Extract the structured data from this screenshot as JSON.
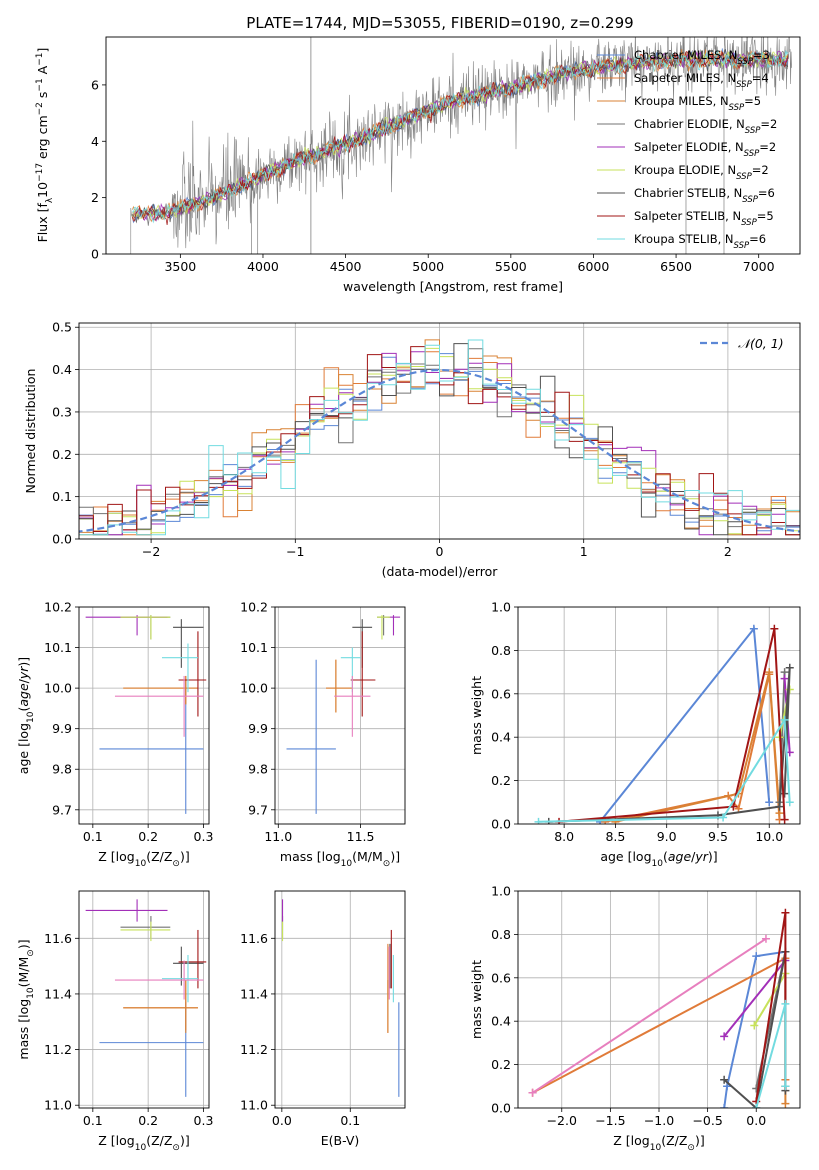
{
  "figure_title": "PLATE=1744, MJD=53055, FIBERID=0190, z=0.299",
  "colors": {
    "Chabrier MILES": "#5b87d6",
    "Salpeter MILES": "#e07b39",
    "Kroupa MILES": "#d98234",
    "Chabrier ELODIE": "#737373",
    "Salpeter ELODIE": "#a22fb8",
    "Kroupa ELODIE": "#c7e25b",
    "Chabrier STELIB": "#505050",
    "Salpeter STELIB": "#a11515",
    "Kroupa STELIB": "#72dbe0",
    "pink": "#e77fbe",
    "grey_spectrum": "#808080"
  },
  "chart_data": [
    {
      "id": "spectrum",
      "type": "line",
      "title": "PLATE=1744, MJD=53055, FIBERID=0190, z=0.299",
      "xlabel": "wavelength [Angstrom, rest frame]",
      "ylabel_parts": [
        "Flux [f",
        "λ",
        "10",
        "−17",
        " erg cm",
        "−2",
        " s",
        "−1",
        " A",
        "−1",
        "]"
      ],
      "xlim": [
        3050,
        7250
      ],
      "ylim": [
        0,
        7.7
      ],
      "xticks": [
        3500,
        4000,
        4500,
        5000,
        5500,
        6000,
        6500,
        7000
      ],
      "yticks": [
        0,
        2,
        4,
        6
      ],
      "legend_position": "upper-right",
      "legend": [
        {
          "label_pre": "Chabrier MILES, N",
          "label_sub": "SSP",
          "label_post": "=3"
        },
        {
          "label_pre": "Salpeter MILES, N",
          "label_sub": "SSP",
          "label_post": "=4"
        },
        {
          "label_pre": "Kroupa MILES, N",
          "label_sub": "SSP",
          "label_post": "=5"
        },
        {
          "label_pre": "Chabrier ELODIE, N",
          "label_sub": "SSP",
          "label_post": "=2"
        },
        {
          "label_pre": "Salpeter ELODIE, N",
          "label_sub": "SSP",
          "label_post": "=2"
        },
        {
          "label_pre": "Kroupa ELODIE, N",
          "label_sub": "SSP",
          "label_post": "=2"
        },
        {
          "label_pre": "Chabrier STELIB, N",
          "label_sub": "SSP",
          "label_post": "=6"
        },
        {
          "label_pre": "Salpeter STELIB, N",
          "label_sub": "SSP",
          "label_post": "=5"
        },
        {
          "label_pre": "Kroupa STELIB, N",
          "label_sub": "SSP",
          "label_post": "=6"
        }
      ],
      "continuum": {
        "x": [
          3200,
          3400,
          3500,
          3700,
          3900,
          4000,
          4200,
          4500,
          4800,
          5000,
          5200,
          5500,
          5800,
          6000,
          6300,
          6600,
          7000,
          7200
        ],
        "y": [
          1.4,
          1.45,
          1.6,
          2.0,
          2.5,
          2.8,
          3.3,
          3.9,
          4.6,
          5.1,
          5.5,
          5.9,
          6.4,
          6.6,
          6.8,
          6.9,
          6.9,
          6.9
        ]
      }
    },
    {
      "id": "residuals",
      "type": "histogram",
      "xlabel": "(data-model)/error",
      "ylabel": "Normed distribution",
      "xlim": [
        -2.5,
        2.5
      ],
      "ylim": [
        0,
        0.51
      ],
      "xticks": [
        -2,
        -1,
        0,
        1,
        2
      ],
      "yticks": [
        0.0,
        0.1,
        0.2,
        0.3,
        0.4,
        0.5
      ],
      "bin_width": 0.1,
      "grid": true,
      "legend_position": "upper-right",
      "reference": {
        "label": "𝒩(0, 1)",
        "mean": 0,
        "sigma": 1
      }
    },
    {
      "id": "age-vs-Z",
      "type": "errorbar",
      "xlabel_pre": "Z [log",
      "xlabel_sub": "10",
      "xlabel_post": "(Z/Z",
      "xlabel_sub2": "⊙",
      "xlabel_end": ")]",
      "ylabel_pre": "age  [log",
      "ylabel_sub": "10",
      "ylabel_post": "(age/yr)]",
      "xlim": [
        0.075,
        0.31
      ],
      "ylim": [
        9.665,
        10.2
      ],
      "xticks": [
        0.1,
        0.2,
        0.3
      ],
      "yticks": [
        9.7,
        9.8,
        9.9,
        10.0,
        10.1,
        10.2
      ],
      "points": [
        {
          "series": "Chabrier MILES",
          "x": 0.268,
          "y": 9.85,
          "xerr": [
            0.112,
            0.3
          ],
          "yerr": [
            9.69,
            10.02
          ]
        },
        {
          "series": "Salpeter MILES",
          "x": 0.268,
          "y": 10.0,
          "xerr": [
            0.155,
            0.29
          ],
          "yerr": [
            9.96,
            10.03
          ]
        },
        {
          "series": "Kroupa MILES",
          "x": 0.268,
          "y": 10.0,
          "xerr": [
            0.155,
            0.29
          ],
          "yerr": [
            9.96,
            10.03
          ]
        },
        {
          "series": "Chabrier ELODIE",
          "x": 0.205,
          "y": 10.175,
          "xerr": [
            0.15,
            0.24
          ],
          "yerr": [
            10.12,
            10.18
          ]
        },
        {
          "series": "Salpeter ELODIE",
          "x": 0.18,
          "y": 10.175,
          "xerr": [
            0.087,
            0.235
          ],
          "yerr": [
            10.13,
            10.18
          ]
        },
        {
          "series": "Kroupa ELODIE",
          "x": 0.205,
          "y": 10.175,
          "xerr": [
            0.15,
            0.24
          ],
          "yerr": [
            10.12,
            10.18
          ]
        },
        {
          "series": "Chabrier STELIB",
          "x": 0.26,
          "y": 10.15,
          "xerr": [
            0.245,
            0.3
          ],
          "yerr": [
            10.05,
            10.17
          ]
        },
        {
          "series": "Salpeter STELIB",
          "x": 0.29,
          "y": 10.02,
          "xerr": [
            0.255,
            0.305
          ],
          "yerr": [
            9.93,
            10.14
          ]
        },
        {
          "series": "Kroupa STELIB",
          "x": 0.272,
          "y": 10.075,
          "xerr": [
            0.225,
            0.29
          ],
          "yerr": [
            9.99,
            10.11
          ]
        },
        {
          "series": "pink",
          "x": 0.265,
          "y": 9.98,
          "xerr": [
            0.14,
            0.3
          ],
          "yerr": [
            9.88,
            10.03
          ]
        }
      ]
    },
    {
      "id": "age-vs-mass",
      "type": "errorbar",
      "xlabel_pre": "mass [log",
      "xlabel_sub": "10",
      "xlabel_post": "(M/M",
      "xlabel_sub2": "⊙",
      "xlabel_end": ")]",
      "xlim": [
        10.98,
        11.77
      ],
      "ylim": [
        9.665,
        10.2
      ],
      "xticks": [
        11.0,
        11.5
      ],
      "yticks": [
        9.7,
        9.8,
        9.9,
        10.0,
        10.1,
        10.2
      ],
      "points": [
        {
          "series": "Chabrier MILES",
          "x": 11.23,
          "y": 9.85,
          "xerr": [
            11.05,
            11.35
          ],
          "yerr": [
            9.69,
            10.07
          ]
        },
        {
          "series": "Salpeter MILES",
          "x": 11.35,
          "y": 10.0,
          "xerr": [
            11.29,
            11.45
          ],
          "yerr": [
            9.94,
            10.07
          ]
        },
        {
          "series": "Kroupa MILES",
          "x": 11.35,
          "y": 10.0,
          "xerr": [
            11.29,
            11.45
          ],
          "yerr": [
            9.94,
            10.07
          ]
        },
        {
          "series": "Chabrier ELODIE",
          "x": 11.64,
          "y": 10.175,
          "xerr": [
            11.6,
            11.68
          ],
          "yerr": [
            10.13,
            10.18
          ]
        },
        {
          "series": "Salpeter ELODIE",
          "x": 11.7,
          "y": 10.175,
          "xerr": [
            11.67,
            11.74
          ],
          "yerr": [
            10.13,
            10.18
          ]
        },
        {
          "series": "Kroupa ELODIE",
          "x": 11.63,
          "y": 10.175,
          "xerr": [
            11.6,
            11.68
          ],
          "yerr": [
            10.12,
            10.18
          ]
        },
        {
          "series": "Chabrier STELIB",
          "x": 11.51,
          "y": 10.15,
          "xerr": [
            11.45,
            11.57
          ],
          "yerr": [
            10.05,
            10.17
          ]
        },
        {
          "series": "Salpeter STELIB",
          "x": 11.51,
          "y": 10.02,
          "xerr": [
            11.44,
            11.59
          ],
          "yerr": [
            9.93,
            10.14
          ]
        },
        {
          "series": "Kroupa STELIB",
          "x": 11.45,
          "y": 10.075,
          "xerr": [
            11.38,
            11.5
          ],
          "yerr": [
            9.99,
            10.1
          ]
        },
        {
          "series": "pink",
          "x": 11.45,
          "y": 9.98,
          "xerr": [
            11.34,
            11.56
          ],
          "yerr": [
            9.88,
            10.03
          ]
        }
      ]
    },
    {
      "id": "weight-vs-age",
      "type": "line",
      "xlabel_pre": "age  [log",
      "xlabel_sub": "10",
      "xlabel_post": "(age/yr)]",
      "ylabel": "mass weight",
      "xlim": [
        7.55,
        10.3
      ],
      "ylim": [
        0,
        1.0
      ],
      "xticks": [
        8.0,
        8.5,
        9.0,
        9.5,
        10.0
      ],
      "yticks": [
        0.0,
        0.2,
        0.4,
        0.6,
        0.8,
        1.0
      ],
      "grid": true,
      "series": [
        {
          "name": "Chabrier MILES",
          "x": [
            8.35,
            9.85,
            10.0
          ],
          "y": [
            0.01,
            0.9,
            0.1
          ]
        },
        {
          "name": "Salpeter MILES",
          "x": [
            8.4,
            9.6,
            9.7,
            10.0,
            10.1
          ],
          "y": [
            0.01,
            0.13,
            0.07,
            0.69,
            0.02
          ]
        },
        {
          "name": "Kroupa MILES",
          "x": [
            8.5,
            9.7,
            10.0,
            10.1
          ],
          "y": [
            0.01,
            0.14,
            0.7,
            0.05
          ]
        },
        {
          "name": "Chabrier ELODIE",
          "x": [
            10.1,
            10.15
          ],
          "y": [
            0.1,
            0.7
          ]
        },
        {
          "name": "Salpeter ELODIE",
          "x": [
            10.15,
            10.2
          ],
          "y": [
            0.67,
            0.33
          ]
        },
        {
          "name": "Kroupa ELODIE",
          "x": [
            10.1,
            10.2
          ],
          "y": [
            0.4,
            0.62
          ]
        },
        {
          "name": "Chabrier STELIB",
          "x": [
            7.85,
            9.5,
            10.1,
            10.2,
            10.15
          ],
          "y": [
            0.01,
            0.04,
            0.08,
            0.72,
            0.14
          ]
        },
        {
          "name": "Salpeter STELIB",
          "x": [
            7.95,
            9.65,
            10.05,
            10.15
          ],
          "y": [
            0.01,
            0.08,
            0.9,
            0.02
          ]
        },
        {
          "name": "Kroupa STELIB",
          "x": [
            7.75,
            9.55,
            10.15,
            10.2
          ],
          "y": [
            0.01,
            0.03,
            0.48,
            0.1
          ]
        }
      ]
    },
    {
      "id": "mass-vs-Z",
      "type": "errorbar",
      "xlabel_pre": "Z [log",
      "xlabel_sub": "10",
      "xlabel_post": "(Z/Z",
      "xlabel_sub2": "⊙",
      "xlabel_end": ")]",
      "ylabel_pre": "mass [log",
      "ylabel_sub": "10",
      "ylabel_post": "(M/M",
      "ylabel_sub2": "⊙",
      "ylabel_end": ")]",
      "xlim": [
        0.075,
        0.31
      ],
      "ylim": [
        10.99,
        11.77
      ],
      "xticks": [
        0.1,
        0.2,
        0.3
      ],
      "yticks": [
        11.0,
        11.2,
        11.4,
        11.6
      ],
      "points": [
        {
          "series": "Chabrier MILES",
          "x": 0.268,
          "y": 11.225,
          "xerr": [
            0.112,
            0.3
          ],
          "yerr": [
            11.03,
            11.37
          ]
        },
        {
          "series": "Salpeter MILES",
          "x": 0.268,
          "y": 11.35,
          "xerr": [
            0.155,
            0.29
          ],
          "yerr": [
            11.27,
            11.45
          ]
        },
        {
          "series": "Kroupa MILES",
          "x": 0.268,
          "y": 11.35,
          "xerr": [
            0.155,
            0.29
          ],
          "yerr": [
            11.26,
            11.45
          ]
        },
        {
          "series": "Chabrier ELODIE",
          "x": 0.205,
          "y": 11.64,
          "xerr": [
            0.15,
            0.24
          ],
          "yerr": [
            11.6,
            11.68
          ]
        },
        {
          "series": "Salpeter ELODIE",
          "x": 0.18,
          "y": 11.7,
          "xerr": [
            0.087,
            0.235
          ],
          "yerr": [
            11.66,
            11.74
          ]
        },
        {
          "series": "Kroupa ELODIE",
          "x": 0.205,
          "y": 11.63,
          "xerr": [
            0.15,
            0.24
          ],
          "yerr": [
            11.59,
            11.66
          ]
        },
        {
          "series": "Chabrier STELIB",
          "x": 0.26,
          "y": 11.51,
          "xerr": [
            0.245,
            0.3
          ],
          "yerr": [
            11.43,
            11.57
          ]
        },
        {
          "series": "Salpeter STELIB",
          "x": 0.29,
          "y": 11.515,
          "xerr": [
            0.255,
            0.305
          ],
          "yerr": [
            11.42,
            11.63
          ]
        },
        {
          "series": "Kroupa STELIB",
          "x": 0.272,
          "y": 11.455,
          "xerr": [
            0.225,
            0.29
          ],
          "yerr": [
            11.37,
            11.54
          ]
        },
        {
          "series": "pink",
          "x": 0.265,
          "y": 11.45,
          "xerr": [
            0.14,
            0.3
          ],
          "yerr": [
            11.38,
            11.52
          ]
        }
      ]
    },
    {
      "id": "mass-vs-EBV",
      "type": "errorbar",
      "xlabel": "E(B-V)",
      "xlim": [
        -0.01,
        0.18
      ],
      "ylim": [
        10.99,
        11.77
      ],
      "xticks": [
        0.0,
        0.1
      ],
      "yticks": [
        11.0,
        11.2,
        11.4,
        11.6
      ],
      "points": [
        {
          "series": "Chabrier MILES",
          "x": 0.171,
          "y": 11.225,
          "yerr": [
            11.03,
            11.37
          ]
        },
        {
          "series": "Salpeter MILES",
          "x": 0.155,
          "y": 11.35,
          "yerr": [
            11.26,
            11.58
          ]
        },
        {
          "series": "Kroupa MILES",
          "x": 0.155,
          "y": 11.35,
          "yerr": [
            11.26,
            11.45
          ]
        },
        {
          "series": "Chabrier ELODIE",
          "x": 0.001,
          "y": 11.64,
          "yerr": [
            11.6,
            11.68
          ]
        },
        {
          "series": "Salpeter ELODIE",
          "x": 0.001,
          "y": 11.7,
          "yerr": [
            11.66,
            11.74
          ]
        },
        {
          "series": "Kroupa ELODIE",
          "x": 0.001,
          "y": 11.63,
          "yerr": [
            11.59,
            11.66
          ]
        },
        {
          "series": "Chabrier STELIB",
          "x": 0.158,
          "y": 11.51,
          "yerr": [
            11.42,
            11.58
          ]
        },
        {
          "series": "Salpeter STELIB",
          "x": 0.16,
          "y": 11.515,
          "yerr": [
            11.42,
            11.63
          ]
        },
        {
          "series": "Kroupa STELIB",
          "x": 0.163,
          "y": 11.455,
          "yerr": [
            11.37,
            11.54
          ]
        },
        {
          "series": "pink",
          "x": 0.157,
          "y": 11.45,
          "yerr": [
            11.38,
            11.57
          ]
        }
      ]
    },
    {
      "id": "weight-vs-Z",
      "type": "line",
      "xlabel_pre": "Z [log",
      "xlabel_sub": "10",
      "xlabel_post": "(Z/Z",
      "xlabel_sub2": "⊙",
      "xlabel_end": ")]",
      "ylabel": "mass weight",
      "xlim": [
        -2.45,
        0.45
      ],
      "ylim": [
        0,
        1.0
      ],
      "xticks": [
        -2.0,
        -1.5,
        -1.0,
        -0.5,
        0.0
      ],
      "yticks": [
        0.0,
        0.2,
        0.4,
        0.6,
        0.8,
        1.0
      ],
      "grid": true,
      "series": [
        {
          "name": "Chabrier MILES",
          "x": [
            -0.33,
            -0.3,
            0.0,
            0.3
          ],
          "y": [
            0.0,
            0.1,
            0.7,
            0.72
          ]
        },
        {
          "name": "Salpeter MILES",
          "x": [
            -2.3,
            0.3,
            0.3
          ],
          "y": [
            0.07,
            0.69,
            0.13
          ]
        },
        {
          "name": "Kroupa MILES",
          "x": [
            0.3,
            0.3
          ],
          "y": [
            0.1,
            0.02
          ]
        },
        {
          "name": "Chabrier ELODIE",
          "x": [
            0.0,
            0.3
          ],
          "y": [
            0.09,
            0.72
          ]
        },
        {
          "name": "Salpeter ELODIE",
          "x": [
            -0.33,
            0.3
          ],
          "y": [
            0.33,
            0.68
          ]
        },
        {
          "name": "Kroupa ELODIE",
          "x": [
            -0.02,
            0.3
          ],
          "y": [
            0.38,
            0.62
          ]
        },
        {
          "name": "Chabrier STELIB",
          "x": [
            -0.33,
            0.0,
            0.3,
            0.3
          ],
          "y": [
            0.13,
            0.0,
            0.72,
            0.08
          ]
        },
        {
          "name": "Salpeter STELIB",
          "x": [
            0.0,
            0.3,
            0.3
          ],
          "y": [
            0.03,
            0.9,
            0.1
          ]
        },
        {
          "name": "Kroupa STELIB",
          "x": [
            0.0,
            0.3,
            0.3
          ],
          "y": [
            0.0,
            0.48,
            0.1
          ]
        },
        {
          "name": "pink",
          "x": [
            -2.3,
            0.1
          ],
          "y": [
            0.07,
            0.78
          ]
        }
      ]
    }
  ]
}
